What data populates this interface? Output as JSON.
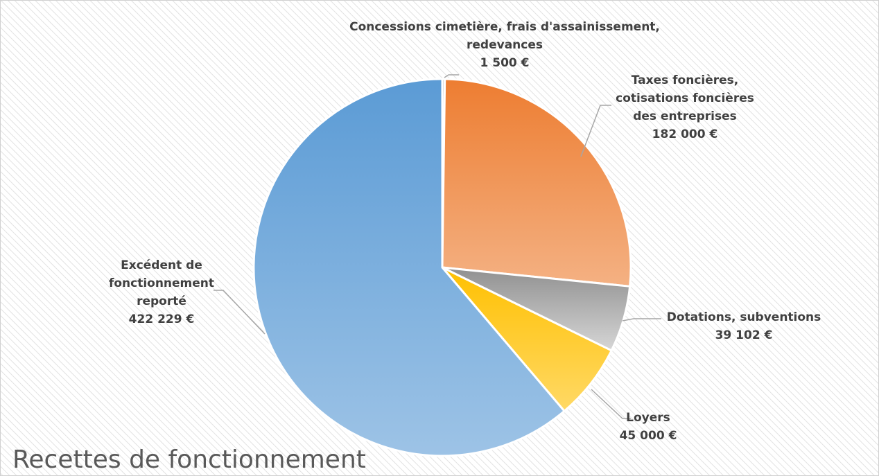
{
  "chart_data": {
    "type": "pie",
    "title": "Recettes de fonctionnement",
    "start_angle_deg": 0,
    "direction": "clockwise",
    "legend": "none",
    "slices": [
      {
        "name": "Concessions cimetière, frais d'assainissement, redevances",
        "label_lines": [
          "Concessions cimetière, frais d'assainissement,",
          "redevances"
        ],
        "value": 1500,
        "value_label": "1 500 €",
        "color": "#E6E6E6"
      },
      {
        "name": "Taxes foncières, cotisations foncières des entreprises",
        "label_lines": [
          "Taxes foncières,",
          "cotisations foncières",
          "des entreprises"
        ],
        "value": 182000,
        "value_label": "182 000 €",
        "color": "#ED7D31"
      },
      {
        "name": "Dotations, subventions",
        "label_lines": [
          "Dotations, subventions"
        ],
        "value": 39102,
        "value_label": "39 102 €",
        "color": "#A5A5A5"
      },
      {
        "name": "Loyers",
        "label_lines": [
          "Loyers"
        ],
        "value": 45000,
        "value_label": "45 000 €",
        "color": "#FFC000"
      },
      {
        "name": "Excédent de fonctionnement reporté",
        "label_lines": [
          "Excédent de",
          "fonctionnement",
          "reporté"
        ],
        "value": 422229,
        "value_label": "422 229 €",
        "color": "#5B9BD5"
      }
    ]
  }
}
